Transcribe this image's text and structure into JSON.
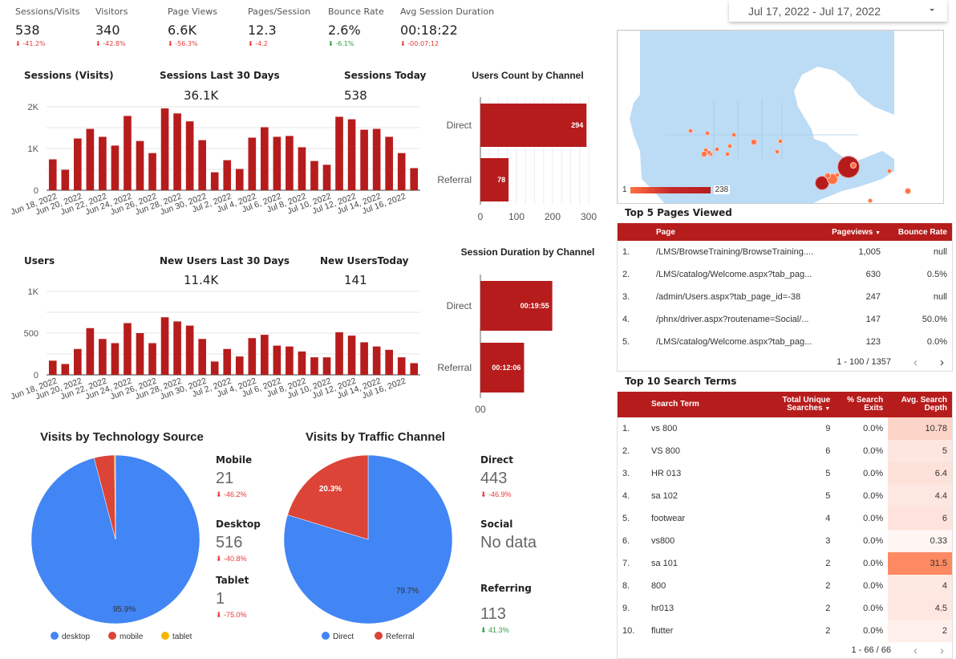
{
  "date_range": {
    "label": "Jul 17, 2022 - Jul 17, 2022"
  },
  "kpis": [
    {
      "label": "Sessions/Visits",
      "value": "538",
      "delta": "-41.2%",
      "trend": "neg"
    },
    {
      "label": "Visitors",
      "value": "340",
      "delta": "-42.8%",
      "trend": "neg"
    },
    {
      "label": "Page Views",
      "value": "6.6K",
      "delta": "-56.3%",
      "trend": "neg"
    },
    {
      "label": "Pages/Session",
      "value": "12.3",
      "delta": "-4.2",
      "trend": "neg"
    },
    {
      "label": "Bounce Rate",
      "value": "2.6%",
      "delta": "-6.1%",
      "trend": "pos"
    },
    {
      "label": "Avg Session Duration",
      "value": "00:18:22",
      "delta": "-00:07:12",
      "trend": "neg"
    }
  ],
  "sessions_section": {
    "title": "Sessions (Visits)",
    "last30_label": "Sessions Last 30 Days",
    "last30_value": "36.1K",
    "today_label": "Sessions Today",
    "today_value": "538"
  },
  "users_section": {
    "title": "Users",
    "last30_label": "New Users Last 30 Days",
    "last30_value": "11.4K",
    "today_label": "New UsersToday",
    "today_value": "141"
  },
  "tech_stats": [
    {
      "label": "Mobile",
      "value": "21",
      "delta": "-46.2%",
      "trend": "neg"
    },
    {
      "label": "Desktop",
      "value": "516",
      "delta": "-40.8%",
      "trend": "neg"
    },
    {
      "label": "Tablet",
      "value": "1",
      "delta": "-75.0%",
      "trend": "neg"
    }
  ],
  "channel_stats": [
    {
      "label": "Direct",
      "value": "443",
      "delta": "-46.9%",
      "trend": "neg"
    },
    {
      "label": "Social",
      "value": "No data",
      "delta": "",
      "trend": ""
    },
    {
      "label": "Referring",
      "value": "113",
      "delta": "41.3%",
      "trend": "pos"
    }
  ],
  "map": {
    "legend_min": "1",
    "legend_max": "238"
  },
  "top_pages": {
    "title": "Top 5 Pages Viewed",
    "headers": [
      "Page",
      "Pageviews",
      "Bounce Rate"
    ],
    "sort_indicator": "▼",
    "rows": [
      {
        "idx": "1.",
        "page": "/LMS/BrowseTraining/BrowseTraining....",
        "views": "1,005",
        "bounce": "null"
      },
      {
        "idx": "2.",
        "page": "/LMS/catalog/Welcome.aspx?tab_pag...",
        "views": "630",
        "bounce": "0.5%"
      },
      {
        "idx": "3.",
        "page": "/admin/Users.aspx?tab_page_id=-38",
        "views": "247",
        "bounce": "null"
      },
      {
        "idx": "4.",
        "page": "/phnx/driver.aspx?routename=Social/...",
        "views": "147",
        "bounce": "50.0%"
      },
      {
        "idx": "5.",
        "page": "/LMS/catalog/Welcome.aspx?tab_pag...",
        "views": "123",
        "bounce": "0.0%"
      }
    ],
    "pager": "1 - 100 / 1357"
  },
  "top_search": {
    "title": "Top 10 Search Terms",
    "headers": [
      "Search Term",
      "Total Unique",
      "Searches",
      "% Search",
      "Exits",
      "Avg. Search",
      "Depth"
    ],
    "sort_indicator": "▼",
    "rows": [
      {
        "idx": "1.",
        "term": "vs 800",
        "searches": "9",
        "exits": "0.0%",
        "depth": "10.78",
        "heat": "#fcd5c8"
      },
      {
        "idx": "2.",
        "term": "VS 800",
        "searches": "6",
        "exits": "0.0%",
        "depth": "5",
        "heat": "#fde6df"
      },
      {
        "idx": "3.",
        "term": "HR 013",
        "searches": "5",
        "exits": "0.0%",
        "depth": "6.4",
        "heat": "#fde2da"
      },
      {
        "idx": "4.",
        "term": "sa 102",
        "searches": "5",
        "exits": "0.0%",
        "depth": "4.4",
        "heat": "#fde8e1"
      },
      {
        "idx": "5.",
        "term": "footwear",
        "searches": "4",
        "exits": "0.0%",
        "depth": "6",
        "heat": "#fde3db"
      },
      {
        "idx": "6.",
        "term": "vs800",
        "searches": "3",
        "exits": "0.0%",
        "depth": "0.33",
        "heat": "#fff5f2"
      },
      {
        "idx": "7.",
        "term": "sa 101",
        "searches": "2",
        "exits": "0.0%",
        "depth": "31.5",
        "heat": "#fd8a62"
      },
      {
        "idx": "8.",
        "term": "800",
        "searches": "2",
        "exits": "0.0%",
        "depth": "4",
        "heat": "#fde9e2"
      },
      {
        "idx": "9.",
        "term": "hr013",
        "searches": "2",
        "exits": "0.0%",
        "depth": "4.5",
        "heat": "#fde7e0"
      },
      {
        "idx": "10.",
        "term": "flutter",
        "searches": "2",
        "exits": "0.0%",
        "depth": "2",
        "heat": "#feefea"
      }
    ],
    "pager": "1 - 66 / 66"
  },
  "colors": {
    "bar": "#b71c1c",
    "blue": "#4285f4",
    "red": "#db4437",
    "yellow": "#f4b400",
    "map_land": "#bcdcf6"
  },
  "chart_data": [
    {
      "id": "sessions",
      "type": "bar",
      "title": "Sessions (Visits)",
      "categories": [
        "Jun 18, 2022",
        "Jun 19, 2022",
        "Jun 20, 2022",
        "Jun 21, 2022",
        "Jun 22, 2022",
        "Jun 23, 2022",
        "Jun 24, 2022",
        "Jun 25, 2022",
        "Jun 26, 2022",
        "Jun 27, 2022",
        "Jun 28, 2022",
        "Jun 29, 2022",
        "Jun 30, 2022",
        "Jul 1, 2022",
        "Jul 2, 2022",
        "Jul 3, 2022",
        "Jul 4, 2022",
        "Jul 5, 2022",
        "Jul 6, 2022",
        "Jul 7, 2022",
        "Jul 8, 2022",
        "Jul 9, 2022",
        "Jul 10, 2022",
        "Jul 11, 2022",
        "Jul 12, 2022",
        "Jul 13, 2022",
        "Jul 14, 2022",
        "Jul 15, 2022",
        "Jul 16, 2022",
        "Jul 17, 2022"
      ],
      "tick_labels": [
        "Jun 18, 2022",
        "Jun 20, 2022",
        "Jun 22, 2022",
        "Jun 24, 2022",
        "Jun 26, 2022",
        "Jun 28, 2022",
        "Jun 30, 2022",
        "Jul 2, 2022",
        "Jul 4, 2022",
        "Jul 6, 2022",
        "Jul 8, 2022",
        "Jul 10, 2022",
        "Jul 12, 2022",
        "Jul 14, 2022",
        "Jul 16, 2022"
      ],
      "values": [
        740,
        490,
        1240,
        1470,
        1280,
        1070,
        1780,
        1180,
        890,
        1960,
        1840,
        1650,
        1200,
        430,
        720,
        510,
        1260,
        1510,
        1280,
        1300,
        1030,
        700,
        610,
        1760,
        1700,
        1450,
        1470,
        1280,
        890,
        530
      ],
      "y_ticks": [
        {
          "v": 0,
          "label": "0"
        },
        {
          "v": 1000,
          "label": "1K"
        },
        {
          "v": 2000,
          "label": "2K"
        }
      ],
      "ylim": [
        0,
        2000
      ]
    },
    {
      "id": "users",
      "type": "bar",
      "title": "Users",
      "categories": [
        "Jun 18, 2022",
        "Jun 19, 2022",
        "Jun 20, 2022",
        "Jun 21, 2022",
        "Jun 22, 2022",
        "Jun 23, 2022",
        "Jun 24, 2022",
        "Jun 25, 2022",
        "Jun 26, 2022",
        "Jun 27, 2022",
        "Jun 28, 2022",
        "Jun 29, 2022",
        "Jun 30, 2022",
        "Jul 1, 2022",
        "Jul 2, 2022",
        "Jul 3, 2022",
        "Jul 4, 2022",
        "Jul 5, 2022",
        "Jul 6, 2022",
        "Jul 7, 2022",
        "Jul 8, 2022",
        "Jul 9, 2022",
        "Jul 10, 2022",
        "Jul 11, 2022",
        "Jul 12, 2022",
        "Jul 13, 2022",
        "Jul 14, 2022",
        "Jul 15, 2022",
        "Jul 16, 2022",
        "Jul 17, 2022"
      ],
      "tick_labels": [
        "Jun 18, 2022",
        "Jun 20, 2022",
        "Jun 22, 2022",
        "Jun 24, 2022",
        "Jun 26, 2022",
        "Jun 28, 2022",
        "Jun 30, 2022",
        "Jul 2, 2022",
        "Jul 4, 2022",
        "Jul 6, 2022",
        "Jul 8, 2022",
        "Jul 10, 2022",
        "Jul 12, 2022",
        "Jul 14, 2022",
        "Jul 16, 2022"
      ],
      "values": [
        170,
        130,
        310,
        560,
        430,
        380,
        620,
        500,
        380,
        690,
        640,
        590,
        430,
        160,
        310,
        220,
        440,
        480,
        350,
        340,
        280,
        210,
        210,
        510,
        470,
        390,
        340,
        300,
        210,
        140
      ],
      "y_ticks": [
        {
          "v": 0,
          "label": "0"
        },
        {
          "v": 500,
          "label": "500"
        },
        {
          "v": 1000,
          "label": "1K"
        }
      ],
      "ylim": [
        0,
        1000
      ]
    },
    {
      "id": "users_by_channel",
      "type": "bar",
      "orientation": "horizontal",
      "title": "Users Count by Channel",
      "categories": [
        "Direct",
        "Referral"
      ],
      "values": [
        294,
        78
      ],
      "value_labels": [
        "294",
        "78"
      ],
      "x_ticks": [
        {
          "v": 0,
          "label": "0"
        },
        {
          "v": 100,
          "label": "100"
        },
        {
          "v": 200,
          "label": "200"
        },
        {
          "v": 300,
          "label": "300"
        }
      ],
      "xlim": [
        0,
        300
      ]
    },
    {
      "id": "duration_by_channel",
      "type": "bar",
      "orientation": "horizontal",
      "title": "Session Duration by Channel",
      "categories": [
        "Direct",
        "Referral"
      ],
      "values": [
        1195,
        726
      ],
      "value_labels": [
        "00:19:55",
        "00:12:06"
      ],
      "x_ticks": [
        {
          "v": 0,
          "label": "00"
        }
      ],
      "xlim": [
        0,
        1800
      ]
    },
    {
      "id": "tech_pie",
      "type": "pie",
      "title": "Visits by Technology Source",
      "labels": [
        "desktop",
        "mobile",
        "tablet"
      ],
      "values": [
        95.9,
        3.9,
        0.2
      ],
      "slice_labels": [
        "95.9%",
        "",
        ""
      ],
      "colors": [
        "#4285f4",
        "#db4437",
        "#f4b400"
      ],
      "legend": "bottom"
    },
    {
      "id": "channel_pie",
      "type": "pie",
      "title": "Visits by Traffic Channel",
      "labels": [
        "Direct",
        "Referral"
      ],
      "values": [
        79.7,
        20.3
      ],
      "slice_labels": [
        "79.7%",
        "20.3%"
      ],
      "colors": [
        "#4285f4",
        "#db4437"
      ],
      "legend": "bottom"
    }
  ]
}
